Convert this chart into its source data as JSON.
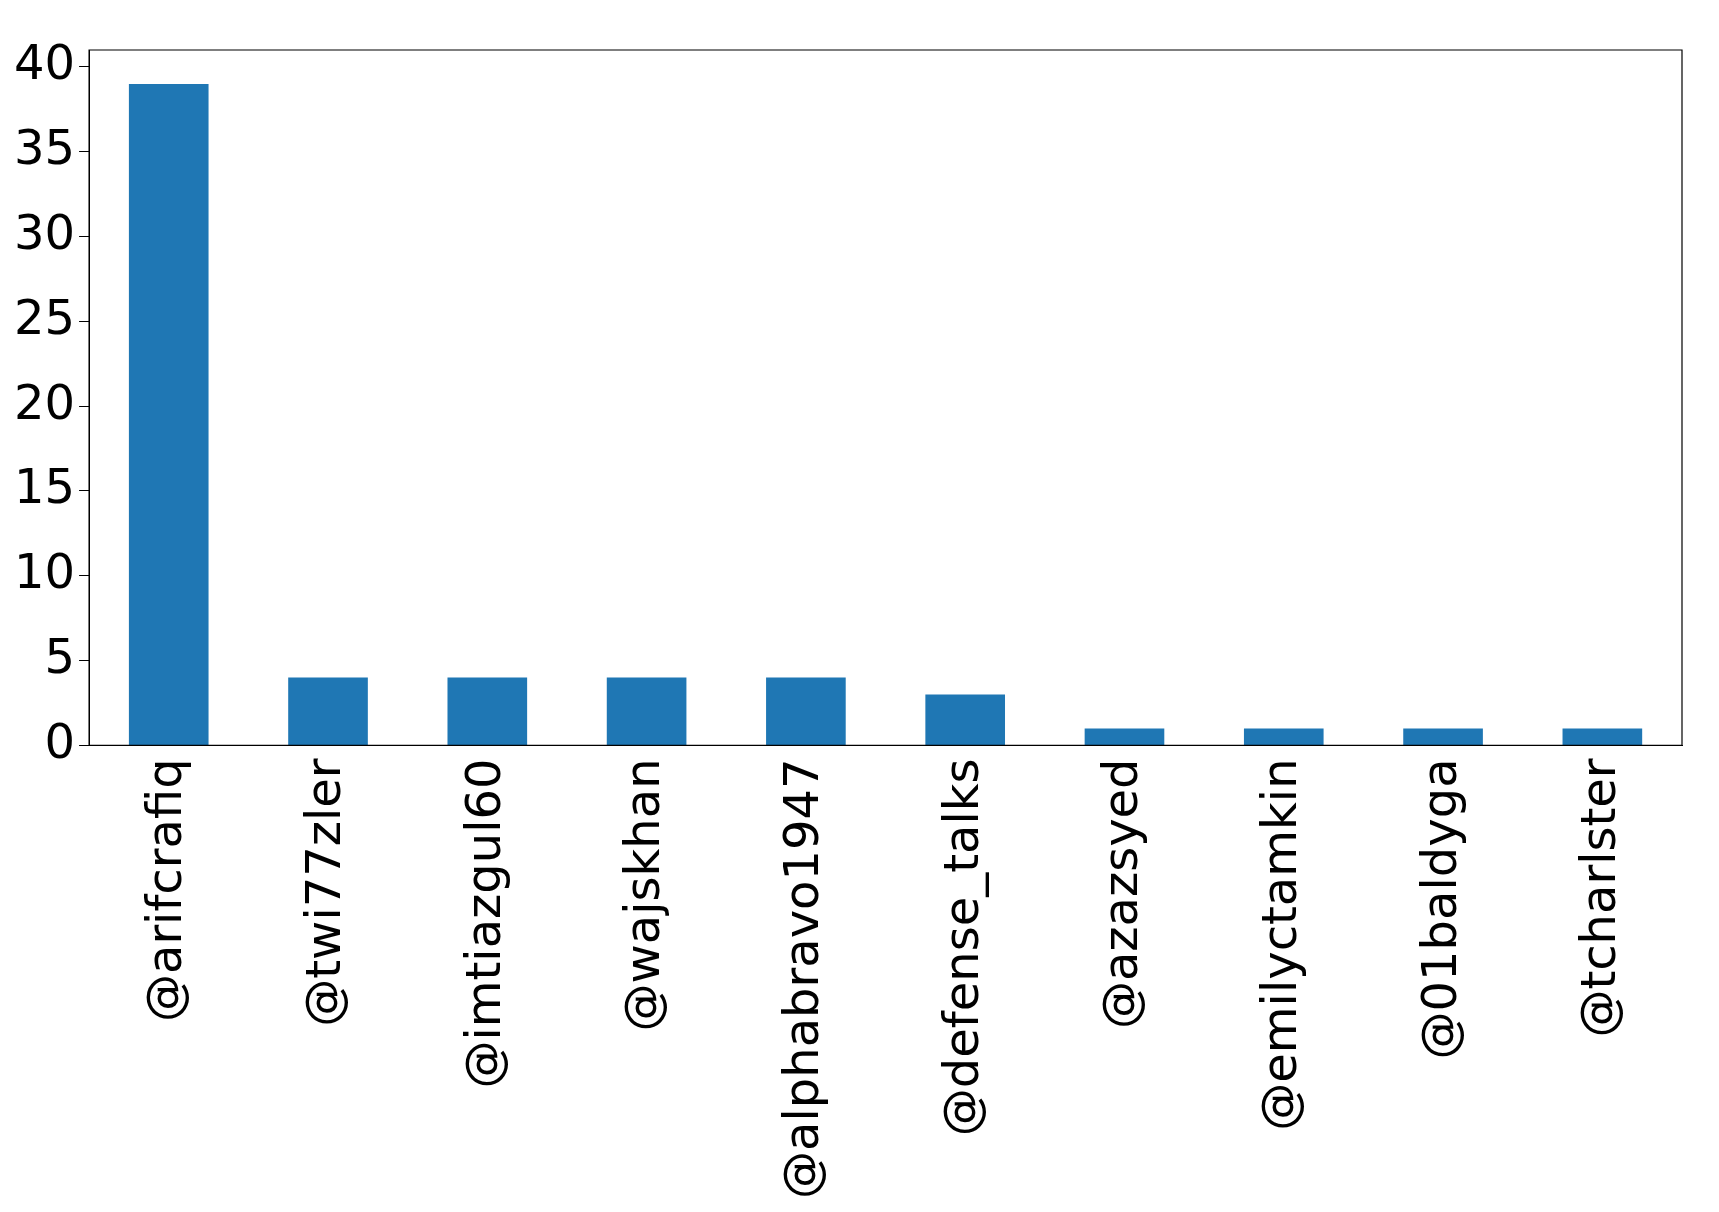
{
  "chart_data": {
    "type": "bar",
    "categories": [
      "@arifcrafiq",
      "@twi77zler",
      "@imtiazgul60",
      "@wajskhan",
      "@alphabravo1947",
      "@defense_talks",
      "@azazsyed",
      "@emilyctamkin",
      "@01baldyga",
      "@tcharlster"
    ],
    "values": [
      39,
      4,
      4,
      4,
      4,
      3,
      1,
      1,
      1,
      1
    ],
    "color": "#1f77b4",
    "ylim": [
      0,
      41
    ],
    "yticks": [
      0,
      5,
      10,
      15,
      20,
      25,
      30,
      35,
      40
    ],
    "grid": false,
    "legend": false
  }
}
